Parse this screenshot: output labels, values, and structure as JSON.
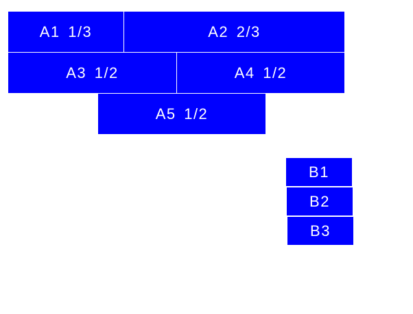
{
  "colors": {
    "box": "#0000ff",
    "text": "#ffffff",
    "background": "#ffffff"
  },
  "group_a": [
    {
      "label": "A1 1/3"
    },
    {
      "label": "A2 2/3"
    },
    {
      "label": "A3 1/2"
    },
    {
      "label": "A4 1/2"
    },
    {
      "label": "A5 1/2"
    }
  ],
  "group_b": [
    {
      "label": "B1"
    },
    {
      "label": "B2"
    },
    {
      "label": "B3"
    }
  ]
}
